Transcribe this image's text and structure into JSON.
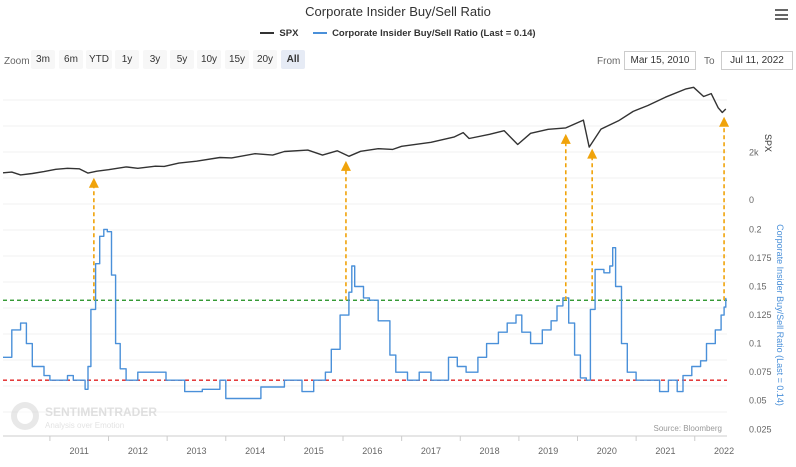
{
  "title": "Corporate Insider Buy/Sell Ratio",
  "legend": [
    {
      "name": "SPX",
      "color": "#333333"
    },
    {
      "name": "Corporate Insider Buy/Sell Ratio (Last = 0.14)",
      "color": "#4a90d9"
    }
  ],
  "zoom": {
    "label": "Zoom",
    "buttons": [
      "3m",
      "6m",
      "YTD",
      "1y",
      "3y",
      "5y",
      "10y",
      "15y",
      "20y",
      "All"
    ],
    "active": "All"
  },
  "range": {
    "from_label": "From",
    "from_value": "Mar 15, 2010",
    "to_label": "To",
    "to_value": "Jul 11, 2022"
  },
  "credit": "Source: Bloomberg",
  "watermark": {
    "name": "SENTIMENTRADER",
    "tagline": "Analysis over Emotion"
  },
  "chart_data": {
    "type": "line",
    "x_axis": {
      "ticks": [
        "2011",
        "2012",
        "2013",
        "2014",
        "2015",
        "2016",
        "2017",
        "2018",
        "2019",
        "2020",
        "2021",
        "2022"
      ],
      "range": [
        2010.2,
        2022.55
      ]
    },
    "upper_axis": {
      "title": "SPX",
      "ticks": [
        "2k",
        "0"
      ]
    },
    "lower_axis": {
      "title": "Corporate Insider Buy/Sell Ratio (Last = 0.14)",
      "ticks": [
        "0.025",
        "0.05",
        "0.075",
        "0.1",
        "0.125",
        "0.15",
        "0.175",
        "0.2"
      ],
      "range": [
        0.02,
        0.21
      ]
    },
    "series": [
      {
        "name": "SPX",
        "axis": "upper",
        "points": [
          [
            2010.2,
            1150
          ],
          [
            2010.35,
            1180
          ],
          [
            2010.5,
            1060
          ],
          [
            2010.7,
            1120
          ],
          [
            2010.9,
            1200
          ],
          [
            2011.1,
            1300
          ],
          [
            2011.3,
            1340
          ],
          [
            2011.5,
            1320
          ],
          [
            2011.65,
            1140
          ],
          [
            2011.8,
            1220
          ],
          [
            2012.0,
            1280
          ],
          [
            2012.3,
            1400
          ],
          [
            2012.5,
            1340
          ],
          [
            2012.8,
            1430
          ],
          [
            2012.95,
            1420
          ],
          [
            2013.2,
            1560
          ],
          [
            2013.5,
            1640
          ],
          [
            2013.9,
            1800
          ],
          [
            2014.1,
            1780
          ],
          [
            2014.5,
            1960
          ],
          [
            2014.8,
            1900
          ],
          [
            2015.0,
            2050
          ],
          [
            2015.4,
            2110
          ],
          [
            2015.65,
            1900
          ],
          [
            2015.9,
            2080
          ],
          [
            2016.1,
            1850
          ],
          [
            2016.3,
            2060
          ],
          [
            2016.6,
            2170
          ],
          [
            2016.85,
            2140
          ],
          [
            2017.0,
            2270
          ],
          [
            2017.5,
            2440
          ],
          [
            2017.9,
            2670
          ],
          [
            2018.05,
            2850
          ],
          [
            2018.15,
            2600
          ],
          [
            2018.5,
            2780
          ],
          [
            2018.75,
            2930
          ],
          [
            2018.98,
            2350
          ],
          [
            2019.2,
            2820
          ],
          [
            2019.5,
            2990
          ],
          [
            2019.8,
            3050
          ],
          [
            2020.1,
            3380
          ],
          [
            2020.2,
            2240
          ],
          [
            2020.4,
            3000
          ],
          [
            2020.7,
            3350
          ],
          [
            2020.95,
            3750
          ],
          [
            2021.2,
            4000
          ],
          [
            2021.5,
            4350
          ],
          [
            2021.85,
            4700
          ],
          [
            2021.98,
            4770
          ],
          [
            2022.15,
            4380
          ],
          [
            2022.28,
            4500
          ],
          [
            2022.4,
            3900
          ],
          [
            2022.47,
            3700
          ],
          [
            2022.53,
            3850
          ]
        ]
      },
      {
        "name": "Corporate Insider Buy/Sell Ratio",
        "axis": "lower",
        "points": [
          [
            2010.2,
            0.088
          ],
          [
            2010.3,
            0.088
          ],
          [
            2010.35,
            0.112
          ],
          [
            2010.5,
            0.118
          ],
          [
            2010.6,
            0.1
          ],
          [
            2010.7,
            0.08
          ],
          [
            2010.8,
            0.08
          ],
          [
            2010.9,
            0.072
          ],
          [
            2011.0,
            0.068
          ],
          [
            2011.2,
            0.068
          ],
          [
            2011.3,
            0.072
          ],
          [
            2011.4,
            0.068
          ],
          [
            2011.55,
            0.068
          ],
          [
            2011.6,
            0.06
          ],
          [
            2011.65,
            0.08
          ],
          [
            2011.7,
            0.13
          ],
          [
            2011.78,
            0.17
          ],
          [
            2011.85,
            0.194
          ],
          [
            2011.92,
            0.2
          ],
          [
            2011.98,
            0.198
          ],
          [
            2012.05,
            0.16
          ],
          [
            2012.12,
            0.1
          ],
          [
            2012.2,
            0.078
          ],
          [
            2012.3,
            0.068
          ],
          [
            2012.5,
            0.075
          ],
          [
            2012.9,
            0.075
          ],
          [
            2012.98,
            0.068
          ],
          [
            2013.2,
            0.068
          ],
          [
            2013.3,
            0.058
          ],
          [
            2013.6,
            0.06
          ],
          [
            2013.9,
            0.068
          ],
          [
            2014.0,
            0.052
          ],
          [
            2014.4,
            0.052
          ],
          [
            2014.6,
            0.062
          ],
          [
            2014.8,
            0.062
          ],
          [
            2015.0,
            0.068
          ],
          [
            2015.3,
            0.058
          ],
          [
            2015.5,
            0.068
          ],
          [
            2015.7,
            0.075
          ],
          [
            2015.8,
            0.095
          ],
          [
            2015.95,
            0.125
          ],
          [
            2016.1,
            0.145
          ],
          [
            2016.15,
            0.168
          ],
          [
            2016.2,
            0.15
          ],
          [
            2016.35,
            0.14
          ],
          [
            2016.45,
            0.138
          ],
          [
            2016.6,
            0.12
          ],
          [
            2016.8,
            0.09
          ],
          [
            2016.9,
            0.075
          ],
          [
            2017.1,
            0.068
          ],
          [
            2017.3,
            0.075
          ],
          [
            2017.5,
            0.068
          ],
          [
            2017.7,
            0.068
          ],
          [
            2017.8,
            0.088
          ],
          [
            2017.95,
            0.08
          ],
          [
            2018.1,
            0.075
          ],
          [
            2018.3,
            0.088
          ],
          [
            2018.45,
            0.1
          ],
          [
            2018.65,
            0.11
          ],
          [
            2018.8,
            0.118
          ],
          [
            2018.95,
            0.125
          ],
          [
            2019.05,
            0.11
          ],
          [
            2019.2,
            0.1
          ],
          [
            2019.4,
            0.112
          ],
          [
            2019.55,
            0.12
          ],
          [
            2019.65,
            0.133
          ],
          [
            2019.75,
            0.14
          ],
          [
            2019.85,
            0.118
          ],
          [
            2019.95,
            0.09
          ],
          [
            2020.05,
            0.07
          ],
          [
            2020.15,
            0.068
          ],
          [
            2020.22,
            0.13
          ],
          [
            2020.3,
            0.165
          ],
          [
            2020.45,
            0.162
          ],
          [
            2020.55,
            0.168
          ],
          [
            2020.6,
            0.184
          ],
          [
            2020.65,
            0.15
          ],
          [
            2020.75,
            0.1
          ],
          [
            2020.85,
            0.075
          ],
          [
            2021.0,
            0.068
          ],
          [
            2021.3,
            0.068
          ],
          [
            2021.4,
            0.058
          ],
          [
            2021.55,
            0.068
          ],
          [
            2021.7,
            0.058
          ],
          [
            2021.8,
            0.072
          ],
          [
            2021.95,
            0.08
          ],
          [
            2022.1,
            0.085
          ],
          [
            2022.2,
            0.1
          ],
          [
            2022.35,
            0.112
          ],
          [
            2022.45,
            0.125
          ],
          [
            2022.5,
            0.132
          ],
          [
            2022.53,
            0.14
          ]
        ]
      }
    ],
    "reference_lines": [
      {
        "value": 0.138,
        "color": "#1a8c1a",
        "style": "dashed"
      },
      {
        "value": 0.068,
        "color": "#e02020",
        "style": "dashed"
      }
    ],
    "signal_years": [
      2011.75,
      2016.05,
      2019.8,
      2020.25,
      2022.5
    ]
  }
}
